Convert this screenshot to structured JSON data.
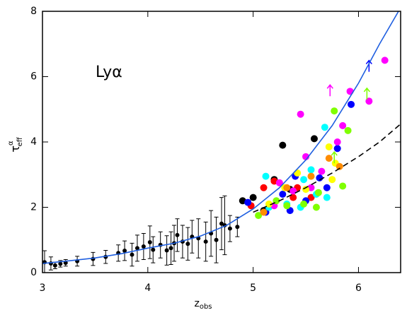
{
  "chart_data": {
    "type": "scatter",
    "annotation": "Lyα",
    "annotation_color": "#ff1a1a",
    "xlabel": {
      "symbol": "z",
      "sub": "obs"
    },
    "ylabel": {
      "symbol": "τ",
      "sup": "α",
      "sub": "eff"
    },
    "xlim": [
      3,
      6.4
    ],
    "ylim": [
      0,
      8
    ],
    "xticks": [
      3,
      4,
      5,
      6
    ],
    "yticks": [
      0,
      2,
      4,
      6,
      8
    ],
    "errorbar_series": {
      "color": "#000000",
      "x": [
        3.02,
        3.08,
        3.12,
        3.17,
        3.22,
        3.33,
        3.48,
        3.6,
        3.72,
        3.78,
        3.85,
        3.9,
        3.96,
        4.02,
        4.05,
        4.12,
        4.18,
        4.22,
        4.25,
        4.28,
        4.33,
        4.38,
        4.42,
        4.48,
        4.55,
        4.6,
        4.65,
        4.7,
        4.73,
        4.78,
        4.85
      ],
      "values": [
        0.32,
        0.28,
        0.22,
        0.27,
        0.3,
        0.35,
        0.42,
        0.48,
        0.6,
        0.67,
        0.55,
        0.75,
        0.8,
        0.93,
        0.7,
        0.85,
        0.68,
        0.75,
        0.9,
        1.15,
        0.95,
        0.88,
        1.1,
        1.05,
        0.95,
        1.2,
        1.0,
        1.5,
        1.45,
        1.35,
        1.4
      ],
      "errors": [
        0.35,
        0.2,
        0.1,
        0.1,
        0.1,
        0.15,
        0.2,
        0.2,
        0.25,
        0.3,
        0.35,
        0.4,
        0.4,
        0.5,
        0.4,
        0.4,
        0.45,
        0.5,
        0.55,
        0.5,
        0.5,
        0.5,
        0.5,
        0.6,
        0.6,
        0.7,
        0.7,
        0.8,
        0.9,
        0.4,
        0.3
      ]
    },
    "series": [
      {
        "color": "#000000",
        "x": [
          4.9,
          5.0,
          5.28,
          5.2,
          5.58,
          5.35,
          5.1
        ],
        "values": [
          2.2,
          2.3,
          3.9,
          2.85,
          4.1,
          2.55,
          1.9
        ]
      },
      {
        "color": "#ff0000",
        "x": [
          4.98,
          5.2,
          5.1,
          5.42,
          5.55,
          5.38
        ],
        "values": [
          2.05,
          2.8,
          2.6,
          2.6,
          2.3,
          2.3
        ]
      },
      {
        "color": "#0000ff",
        "x": [
          4.95,
          5.12,
          5.28,
          5.4,
          5.35,
          5.5,
          5.7,
          5.93,
          5.63,
          5.8
        ],
        "values": [
          2.15,
          1.85,
          2.4,
          2.95,
          1.9,
          2.2,
          2.6,
          5.15,
          2.9,
          3.8
        ]
      },
      {
        "color": "#00ffff",
        "x": [
          5.15,
          5.12,
          5.32,
          5.48,
          5.55,
          5.6,
          5.68,
          5.7,
          5.45
        ],
        "values": [
          2.0,
          2.95,
          2.1,
          2.85,
          3.15,
          2.4,
          4.45,
          2.3,
          2.0
        ]
      },
      {
        "color": "#ff00ff",
        "x": [
          5.45,
          5.2,
          5.38,
          5.5,
          5.55,
          5.8,
          5.85,
          5.92,
          6.1,
          6.25,
          5.65,
          5.25
        ],
        "values": [
          4.85,
          2.05,
          2.5,
          3.55,
          2.6,
          4.0,
          4.5,
          5.55,
          5.25,
          6.5,
          3.1,
          2.75
        ]
      },
      {
        "color": "#7fff00",
        "x": [
          5.05,
          5.22,
          5.32,
          5.48,
          5.62,
          5.77,
          5.9,
          5.85,
          5.6
        ],
        "values": [
          1.75,
          2.2,
          2.05,
          2.1,
          2.45,
          4.95,
          4.35,
          2.65,
          2.0
        ]
      },
      {
        "color": "#ffff00",
        "x": [
          5.15,
          5.3,
          5.42,
          5.5,
          5.72,
          5.75,
          5.78
        ],
        "values": [
          2.1,
          2.6,
          3.05,
          2.55,
          3.85,
          2.85,
          3.35
        ]
      },
      {
        "color": "#ff8c00",
        "x": [
          5.1,
          5.32,
          5.55,
          5.72,
          5.82
        ],
        "values": [
          1.85,
          2.6,
          2.95,
          3.5,
          3.25
        ]
      }
    ],
    "limits": {
      "x": [
        5.73,
        6.08,
        6.1,
        5.77
      ],
      "values": [
        5.4,
        5.3,
        6.15,
        3.35
      ],
      "colors": [
        "#ff00ff",
        "#7fff00",
        "#0000ff",
        "#7fff00"
      ]
    },
    "curves": [
      {
        "color": "#1f5fe0",
        "dash": false,
        "x": [
          3,
          3.25,
          3.5,
          3.75,
          4,
          4.25,
          4.5,
          4.75,
          5,
          5.25,
          5.5,
          5.75,
          6,
          6.2,
          6.38
        ],
        "values": [
          0.28,
          0.36,
          0.45,
          0.58,
          0.75,
          0.9,
          1.12,
          1.45,
          1.95,
          2.6,
          3.45,
          4.5,
          5.8,
          7.0,
          8.0
        ]
      },
      {
        "color": "#000000",
        "dash": true,
        "x": [
          5,
          5.25,
          5.5,
          5.75,
          6,
          6.2,
          6.4
        ],
        "values": [
          1.85,
          2.2,
          2.6,
          3.05,
          3.55,
          4.0,
          4.55
        ]
      }
    ]
  }
}
